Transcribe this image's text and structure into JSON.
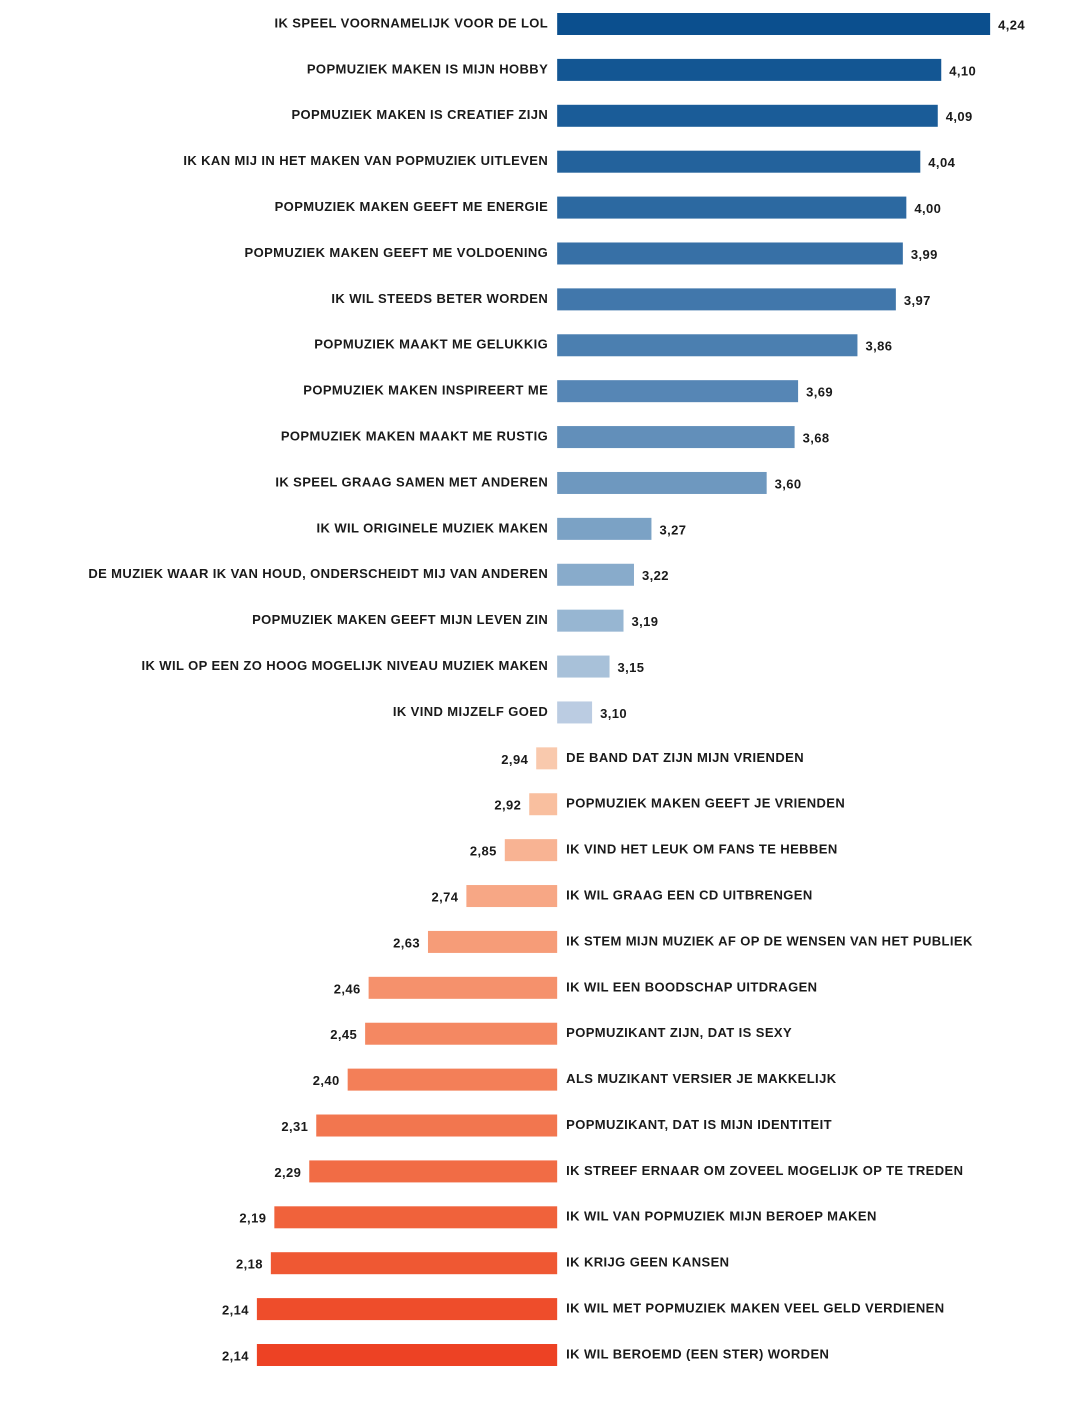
{
  "chart_data": {
    "type": "diverging-bar",
    "orientation": "horizontal",
    "baseline": 3,
    "xlim": [
      2,
      4.4
    ],
    "categories": [
      "IK SPEEL VOORNAMELIJK VOOR DE LOL",
      "POPMUZIEK MAKEN IS MIJN HOBBY",
      "POPMUZIEK MAKEN IS CREATIEF ZIJN",
      "IK KAN MIJ IN HET MAKEN VAN POPMUZIEK UITLEVEN",
      "POPMUZIEK MAKEN GEEFT ME ENERGIE",
      "POPMUZIEK MAKEN GEEFT ME VOLDOENING",
      "IK WIL STEEDS BETER WORDEN",
      "POPMUZIEK MAAKT ME GELUKKIG",
      "POPMUZIEK MAKEN INSPIREERT ME",
      "POPMUZIEK MAKEN MAAKT ME RUSTIG",
      "IK SPEEL GRAAG SAMEN MET ANDEREN",
      "IK WIL ORIGINELE MUZIEK MAKEN",
      "DE MUZIEK WAAR IK VAN HOUD, ONDERSCHEIDT MIJ VAN ANDEREN",
      "POPMUZIEK MAKEN GEEFT MIJN LEVEN ZIN",
      "IK WIL OP EEN ZO HOOG MOGELIJK NIVEAU MUZIEK MAKEN",
      "IK VIND MIJZELF GOED",
      "DE BAND DAT ZIJN MIJN VRIENDEN",
      "POPMUZIEK MAKEN GEEFT JE VRIENDEN",
      "IK VIND HET LEUK OM FANS TE HEBBEN",
      "IK WIL GRAAG EEN CD UITBRENGEN",
      "IK STEM MIJN MUZIEK AF OP DE WENSEN VAN HET PUBLIEK",
      "IK WIL EEN BOODSCHAP UITDRAGEN",
      "POPMUZIKANT ZIJN, DAT IS SEXY",
      "ALS MUZIKANT VERSIER JE MAKKELIJK",
      "POPMUZIKANT, DAT IS MIJN IDENTITEIT",
      "IK STREEF ERNAAR OM ZOVEEL MOGELIJK OP TE TREDEN",
      "IK WIL VAN POPMUZIEK MIJN BEROEP MAKEN",
      "IK KRIJG GEEN KANSEN",
      "IK WIL MET POPMUZIEK MAKEN VEEL GELD VERDIENEN",
      "IK WIL BEROEMD (EEN STER) WORDEN"
    ],
    "values": [
      4.24,
      4.1,
      4.09,
      4.04,
      4.0,
      3.99,
      3.97,
      3.86,
      3.69,
      3.68,
      3.6,
      3.27,
      3.22,
      3.19,
      3.15,
      3.1,
      2.94,
      2.92,
      2.85,
      2.74,
      2.63,
      2.46,
      2.45,
      2.4,
      2.31,
      2.29,
      2.19,
      2.18,
      2.14,
      2.14
    ],
    "value_labels": [
      "4,24",
      "4,10",
      "4,09",
      "4,04",
      "4,00",
      "3,99",
      "3,97",
      "3,86",
      "3,69",
      "3,68",
      "3,60",
      "3,27",
      "3,22",
      "3,19",
      "3,15",
      "3,10",
      "2,94",
      "2,92",
      "2,85",
      "2,74",
      "2,63",
      "2,46",
      "2,45",
      "2,40",
      "2,31",
      "2,29",
      "2,19",
      "2,18",
      "2,14",
      "2,14"
    ],
    "colors": [
      "#0b4f8e",
      "#135693",
      "#1a5c98",
      "#23629c",
      "#2c69a1",
      "#3770a6",
      "#4177ab",
      "#4b7fb0",
      "#5686b5",
      "#628fba",
      "#6e98bf",
      "#7ba2c5",
      "#88abcb",
      "#97b6d2",
      "#a8c1d9",
      "#bbcce2",
      "#f9c9ad",
      "#f9bf9f",
      "#f8b393",
      "#f7a785",
      "#f69c78",
      "#f5916c",
      "#f48862",
      "#f37f58",
      "#f2764f",
      "#f16c45",
      "#f0623b",
      "#ef5833",
      "#ee4d2b",
      "#ed4224"
    ]
  }
}
